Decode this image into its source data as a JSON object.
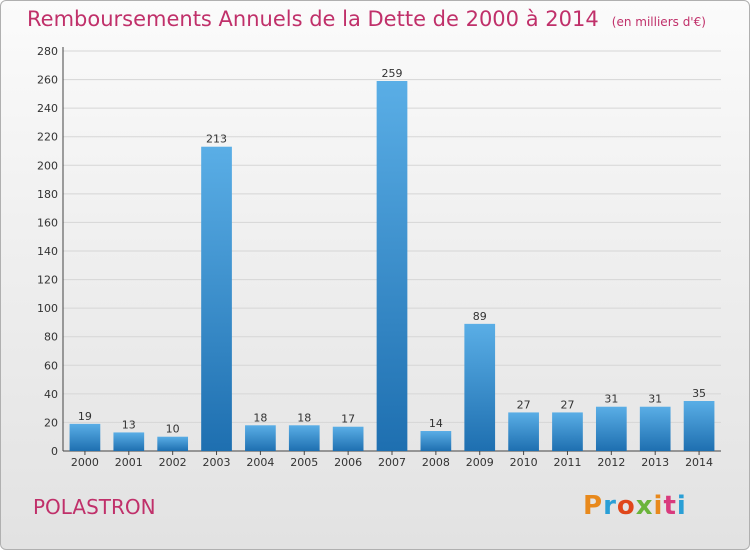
{
  "title": "Remboursements Annuels de la Dette de 2000 à 2014",
  "unit": "(en milliers d'€)",
  "commune": "POLASTRON",
  "logo": {
    "letters": [
      "P",
      "r",
      "o",
      "x",
      "i",
      "t",
      "i"
    ],
    "colors": [
      "#e8891c",
      "#2a9fd6",
      "#e0471b",
      "#6ab43a",
      "#e8891c",
      "#d93a7d",
      "#2a9fd6"
    ]
  },
  "colors": {
    "title": "#c0306a",
    "bar_top": "#5aaee6",
    "bar_bottom": "#1e6fb0",
    "grid": "#d6d6d6"
  },
  "chart_data": {
    "type": "bar",
    "categories": [
      "2000",
      "2001",
      "2002",
      "2003",
      "2004",
      "2005",
      "2006",
      "2007",
      "2008",
      "2009",
      "2010",
      "2011",
      "2012",
      "2013",
      "2014"
    ],
    "values": [
      19,
      13,
      10,
      213,
      18,
      18,
      17,
      259,
      14,
      89,
      27,
      27,
      31,
      31,
      35
    ],
    "ylim": [
      0,
      280
    ],
    "yticks": [
      0,
      20,
      40,
      60,
      80,
      100,
      120,
      140,
      160,
      180,
      200,
      220,
      240,
      260,
      280
    ],
    "grid": true,
    "data_labels": true
  }
}
